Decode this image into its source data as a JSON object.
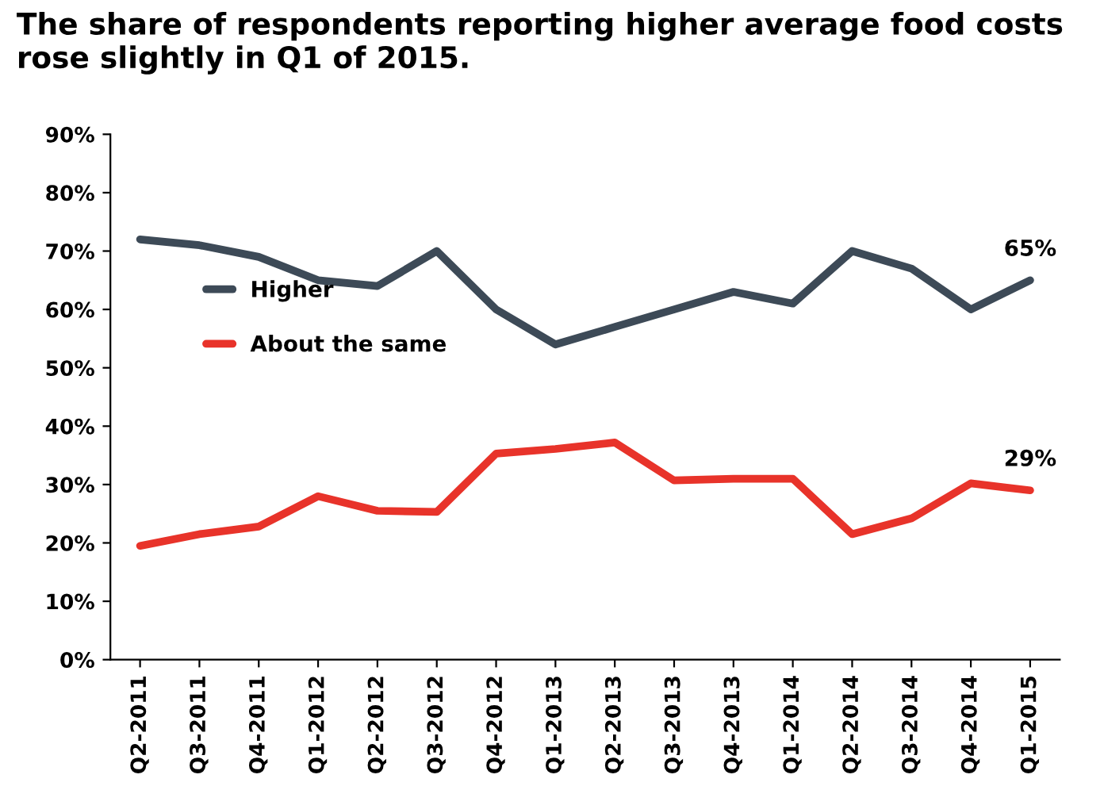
{
  "chart_data": {
    "type": "line",
    "title": "The share of respondents reporting higher average food costs rose slightly in Q1 of 2015.",
    "categories": [
      "Q2-2011",
      "Q3-2011",
      "Q4-2011",
      "Q1-2012",
      "Q2-2012",
      "Q3-2012",
      "Q4-2012",
      "Q1-2013",
      "Q2-2013",
      "Q3-2013",
      "Q4-2013",
      "Q1-2014",
      "Q2-2014",
      "Q3-2014",
      "Q4-2014",
      "Q1-2015"
    ],
    "series": [
      {
        "name": "Higher",
        "color": "#3d4a57",
        "values": [
          72,
          71,
          69,
          65,
          64,
          70,
          60,
          54,
          57,
          60,
          63,
          61,
          70,
          67,
          60,
          65
        ],
        "value_labels": [
          null,
          null,
          null,
          null,
          null,
          null,
          null,
          null,
          null,
          null,
          null,
          null,
          null,
          null,
          null,
          "65%"
        ]
      },
      {
        "name": "About the same",
        "color": "#e8332a",
        "values": [
          19.5,
          21.5,
          22.8,
          28,
          25.5,
          25.3,
          35.3,
          36.1,
          37.2,
          30.7,
          31,
          31,
          21.5,
          24.2,
          30.2,
          29
        ],
        "value_labels": [
          null,
          null,
          null,
          null,
          null,
          null,
          null,
          null,
          null,
          null,
          null,
          null,
          null,
          null,
          null,
          "29%"
        ]
      }
    ],
    "ylim": [
      0,
      90
    ],
    "yticks": [
      {
        "value": 0,
        "label": "0%"
      },
      {
        "value": 10,
        "label": "10%"
      },
      {
        "value": 20,
        "label": "20%"
      },
      {
        "value": 30,
        "label": "30%"
      },
      {
        "value": 40,
        "label": "40%"
      },
      {
        "value": 50,
        "label": "50%"
      },
      {
        "value": 60,
        "label": "60%"
      },
      {
        "value": 70,
        "label": "70%"
      },
      {
        "value": 80,
        "label": "80%"
      },
      {
        "value": 90,
        "label": "90%"
      }
    ],
    "grid": false,
    "legend": "center left",
    "marker": "none",
    "line_style": "solid"
  }
}
